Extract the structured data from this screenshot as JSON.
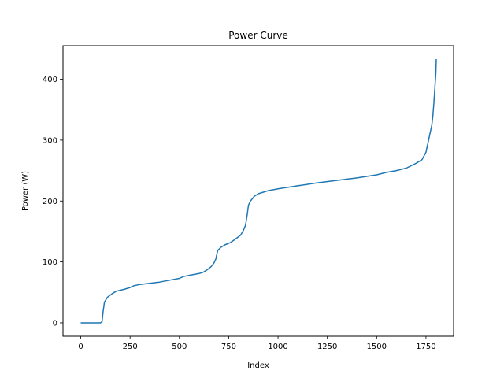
{
  "chart_data": {
    "type": "line",
    "title": "Power Curve",
    "xlabel": "Index",
    "ylabel": "Power (W)",
    "xlim": [
      -90,
      1890
    ],
    "ylim": [
      -22,
      455
    ],
    "xticks": [
      0,
      250,
      500,
      750,
      1000,
      1250,
      1500,
      1750
    ],
    "yticks": [
      0,
      100,
      200,
      300,
      400
    ],
    "grid": false,
    "series": [
      {
        "color": "#1f77b4",
        "points": [
          [
            0,
            0
          ],
          [
            100,
            0
          ],
          [
            108,
            2
          ],
          [
            113,
            18
          ],
          [
            120,
            34
          ],
          [
            135,
            42
          ],
          [
            160,
            48
          ],
          [
            180,
            52
          ],
          [
            220,
            55
          ],
          [
            250,
            58
          ],
          [
            270,
            61
          ],
          [
            300,
            63
          ],
          [
            350,
            65
          ],
          [
            400,
            67
          ],
          [
            450,
            70
          ],
          [
            500,
            73
          ],
          [
            520,
            76
          ],
          [
            550,
            78
          ],
          [
            600,
            81
          ],
          [
            620,
            83
          ],
          [
            640,
            87
          ],
          [
            660,
            92
          ],
          [
            675,
            98
          ],
          [
            685,
            105
          ],
          [
            690,
            113
          ],
          [
            695,
            119
          ],
          [
            710,
            124
          ],
          [
            730,
            128
          ],
          [
            760,
            132
          ],
          [
            790,
            139
          ],
          [
            810,
            144
          ],
          [
            825,
            152
          ],
          [
            835,
            160
          ],
          [
            840,
            170
          ],
          [
            845,
            180
          ],
          [
            850,
            193
          ],
          [
            860,
            200
          ],
          [
            880,
            208
          ],
          [
            900,
            212
          ],
          [
            950,
            217
          ],
          [
            1000,
            220
          ],
          [
            1100,
            225
          ],
          [
            1200,
            230
          ],
          [
            1300,
            234
          ],
          [
            1400,
            238
          ],
          [
            1500,
            243
          ],
          [
            1550,
            247
          ],
          [
            1600,
            250
          ],
          [
            1650,
            254
          ],
          [
            1700,
            262
          ],
          [
            1730,
            268
          ],
          [
            1750,
            280
          ],
          [
            1760,
            295
          ],
          [
            1770,
            310
          ],
          [
            1780,
            325
          ],
          [
            1785,
            340
          ],
          [
            1790,
            360
          ],
          [
            1795,
            385
          ],
          [
            1800,
            410
          ],
          [
            1802,
            433
          ]
        ]
      }
    ]
  }
}
